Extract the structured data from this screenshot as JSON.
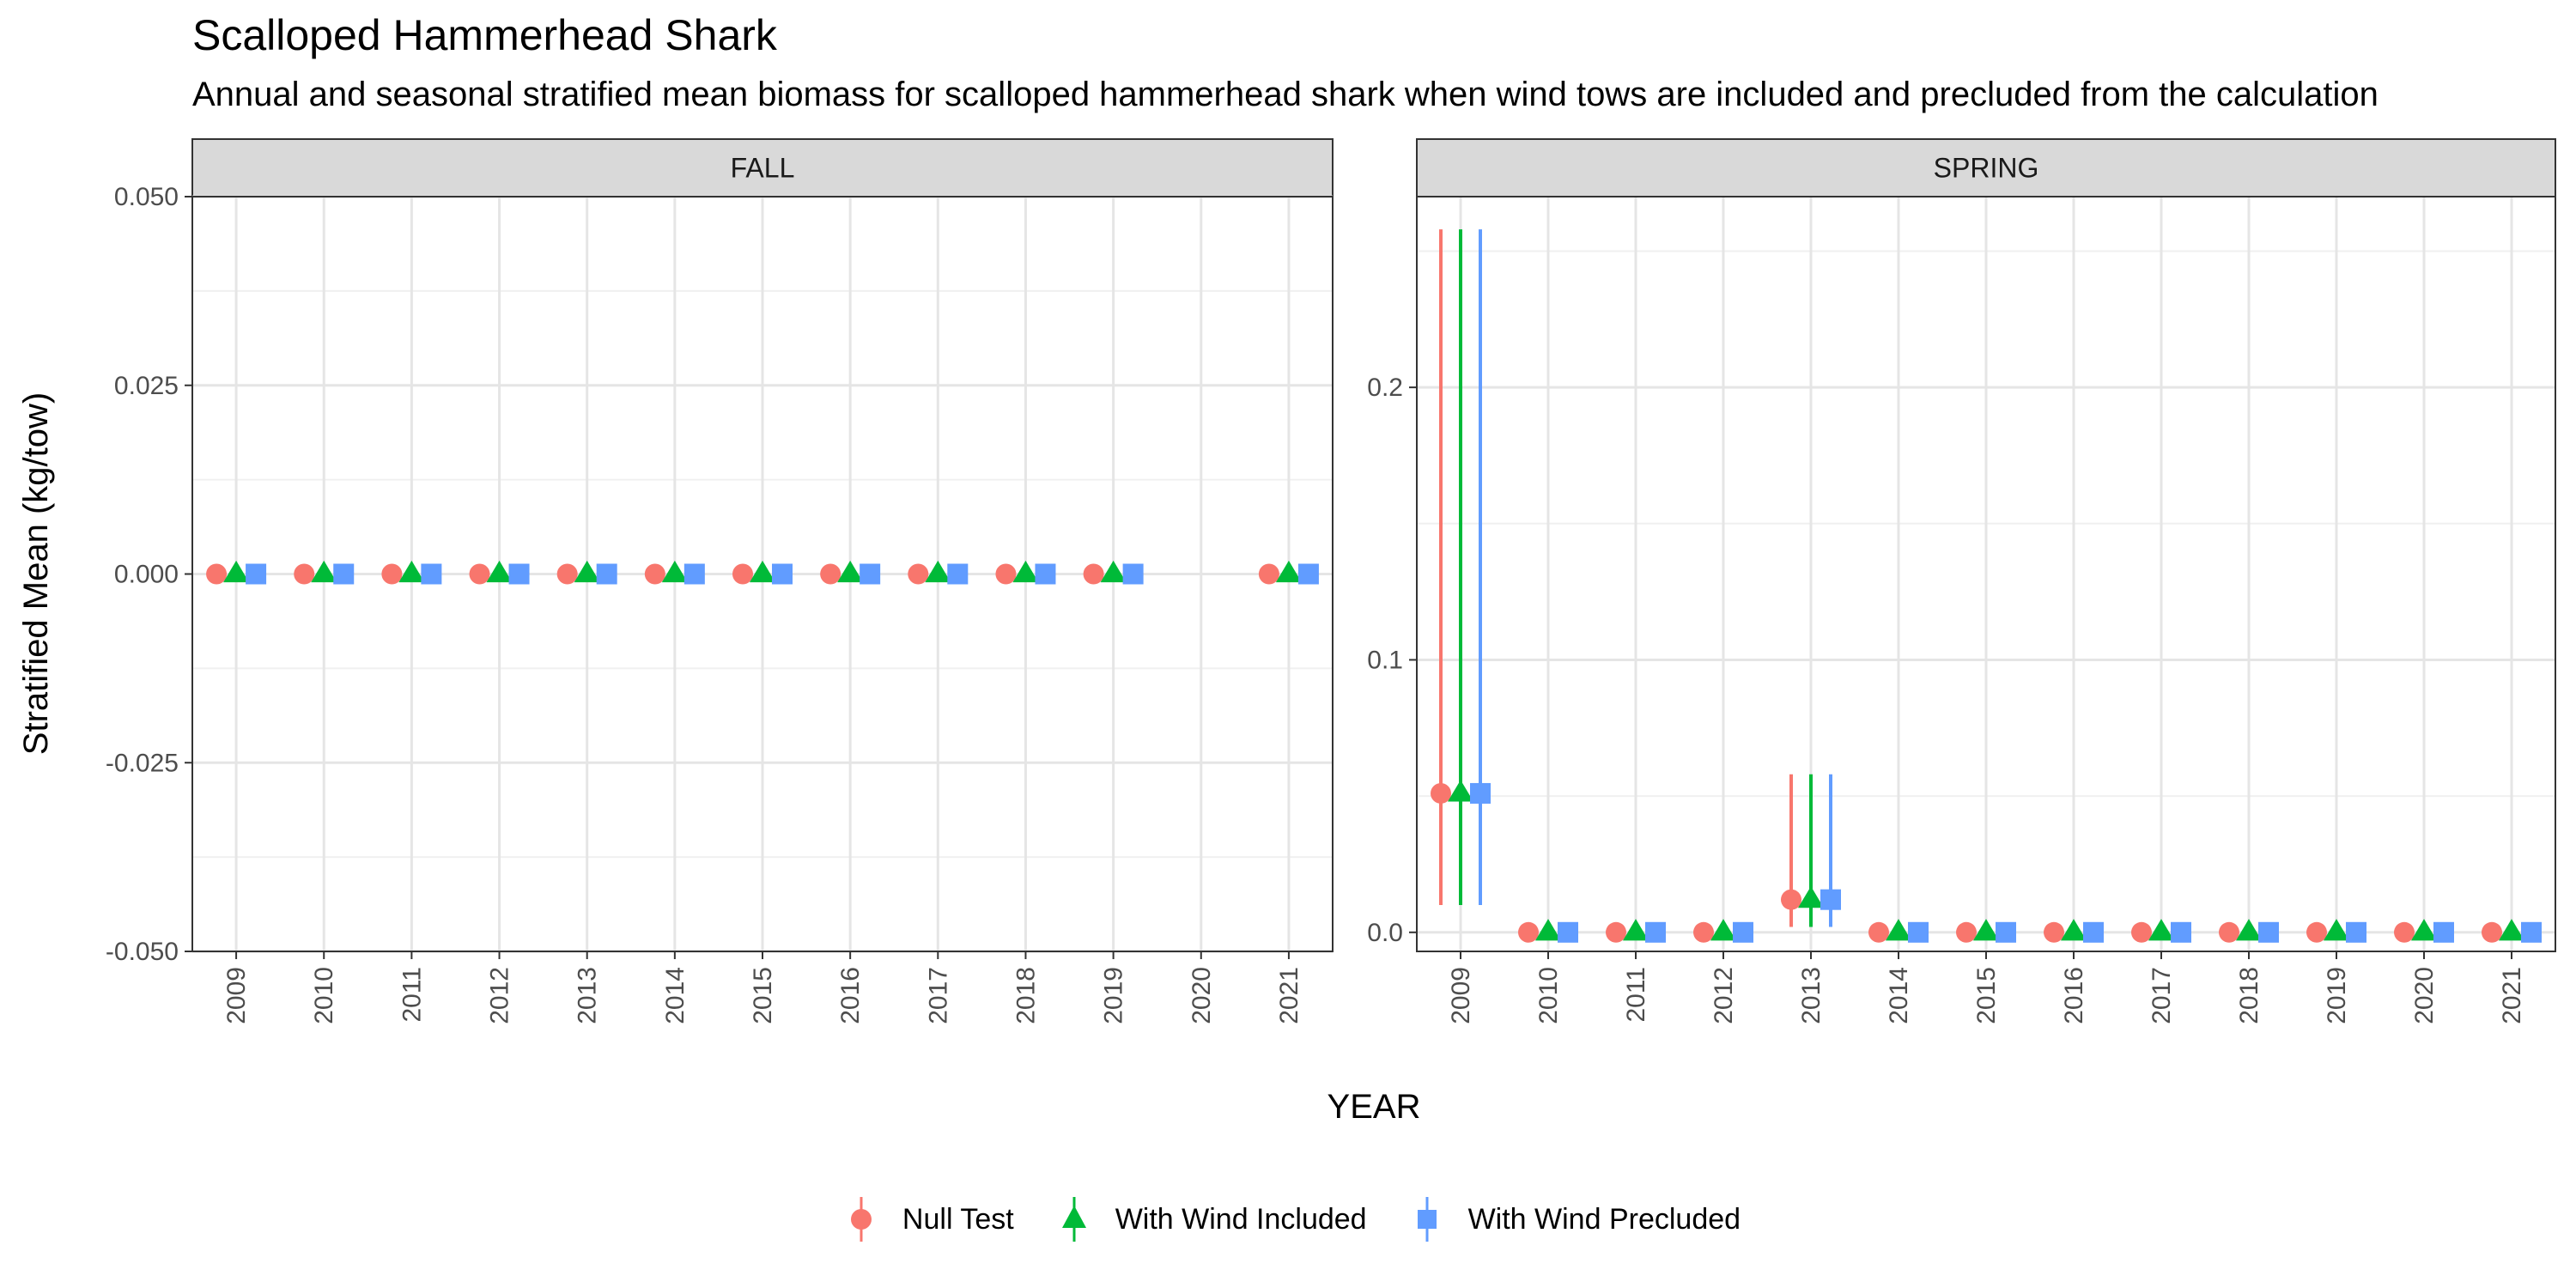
{
  "chart_data": {
    "type": "scatter",
    "title": "Scalloped Hammerhead Shark",
    "subtitle": "Annual and seasonal stratified mean biomass for scalloped hammerhead shark when wind tows are included and precluded from the calculation",
    "xlabel": "YEAR",
    "ylabel": "Stratified Mean (kg/tow)",
    "legend_position": "bottom",
    "series": [
      {
        "name": "Null Test",
        "color": "#F8766D",
        "marker": "circle"
      },
      {
        "name": "With Wind Included",
        "color": "#00BA38",
        "marker": "triangle"
      },
      {
        "name": "With Wind Precluded",
        "color": "#619CFF",
        "marker": "square"
      }
    ],
    "panels": [
      {
        "strip": "FALL",
        "x": [
          "2009",
          "2010",
          "2011",
          "2012",
          "2013",
          "2014",
          "2015",
          "2016",
          "2017",
          "2018",
          "2019",
          "2020",
          "2021"
        ],
        "ylim": [
          -0.05,
          0.05
        ],
        "yticks": [
          -0.05,
          -0.025,
          0,
          0.025,
          0.05
        ],
        "ytick_labels": [
          "-0.050",
          "-0.025",
          "0.000",
          "0.025",
          "0.050"
        ],
        "values": {
          "Null Test": [
            0,
            0,
            0,
            0,
            0,
            0,
            0,
            0,
            0,
            0,
            0,
            null,
            0
          ],
          "With Wind Included": [
            0,
            0,
            0,
            0,
            0,
            0,
            0,
            0,
            0,
            0,
            0,
            null,
            0
          ],
          "With Wind Precluded": [
            0,
            0,
            0,
            0,
            0,
            0,
            0,
            0,
            0,
            0,
            0,
            null,
            0
          ]
        },
        "error_low": {},
        "error_high": {}
      },
      {
        "strip": "SPRING",
        "x": [
          "2009",
          "2010",
          "2011",
          "2012",
          "2013",
          "2014",
          "2015",
          "2016",
          "2017",
          "2018",
          "2019",
          "2020",
          "2021"
        ],
        "ylim": [
          -0.007,
          0.27
        ],
        "yticks": [
          0,
          0.1,
          0.2
        ],
        "ytick_labels": [
          "0.0",
          "0.1",
          "0.2"
        ],
        "values": {
          "Null Test": [
            0.051,
            0,
            0,
            0,
            0.012,
            0,
            0,
            0,
            0,
            0,
            0,
            0,
            0
          ],
          "With Wind Included": [
            0.051,
            0,
            0,
            0,
            0.012,
            0,
            0,
            0,
            0,
            0,
            0,
            0,
            0
          ],
          "With Wind Precluded": [
            0.051,
            0,
            0,
            0,
            0.012,
            0,
            0,
            0,
            0,
            0,
            0,
            0,
            0
          ]
        },
        "error_low": {
          "Null Test": [
            0.01,
            null,
            null,
            null,
            0.002,
            null,
            null,
            null,
            null,
            null,
            null,
            null,
            null
          ],
          "With Wind Included": [
            0.01,
            null,
            null,
            null,
            0.002,
            null,
            null,
            null,
            null,
            null,
            null,
            null,
            null
          ],
          "With Wind Precluded": [
            0.01,
            null,
            null,
            null,
            0.002,
            null,
            null,
            null,
            null,
            null,
            null,
            null,
            null
          ]
        },
        "error_high": {
          "Null Test": [
            0.258,
            null,
            null,
            null,
            0.058,
            null,
            null,
            null,
            null,
            null,
            null,
            null,
            null
          ],
          "With Wind Included": [
            0.258,
            null,
            null,
            null,
            0.058,
            null,
            null,
            null,
            null,
            null,
            null,
            null,
            null
          ],
          "With Wind Precluded": [
            0.258,
            null,
            null,
            null,
            0.058,
            null,
            null,
            null,
            null,
            null,
            null,
            null,
            null
          ]
        }
      }
    ]
  }
}
